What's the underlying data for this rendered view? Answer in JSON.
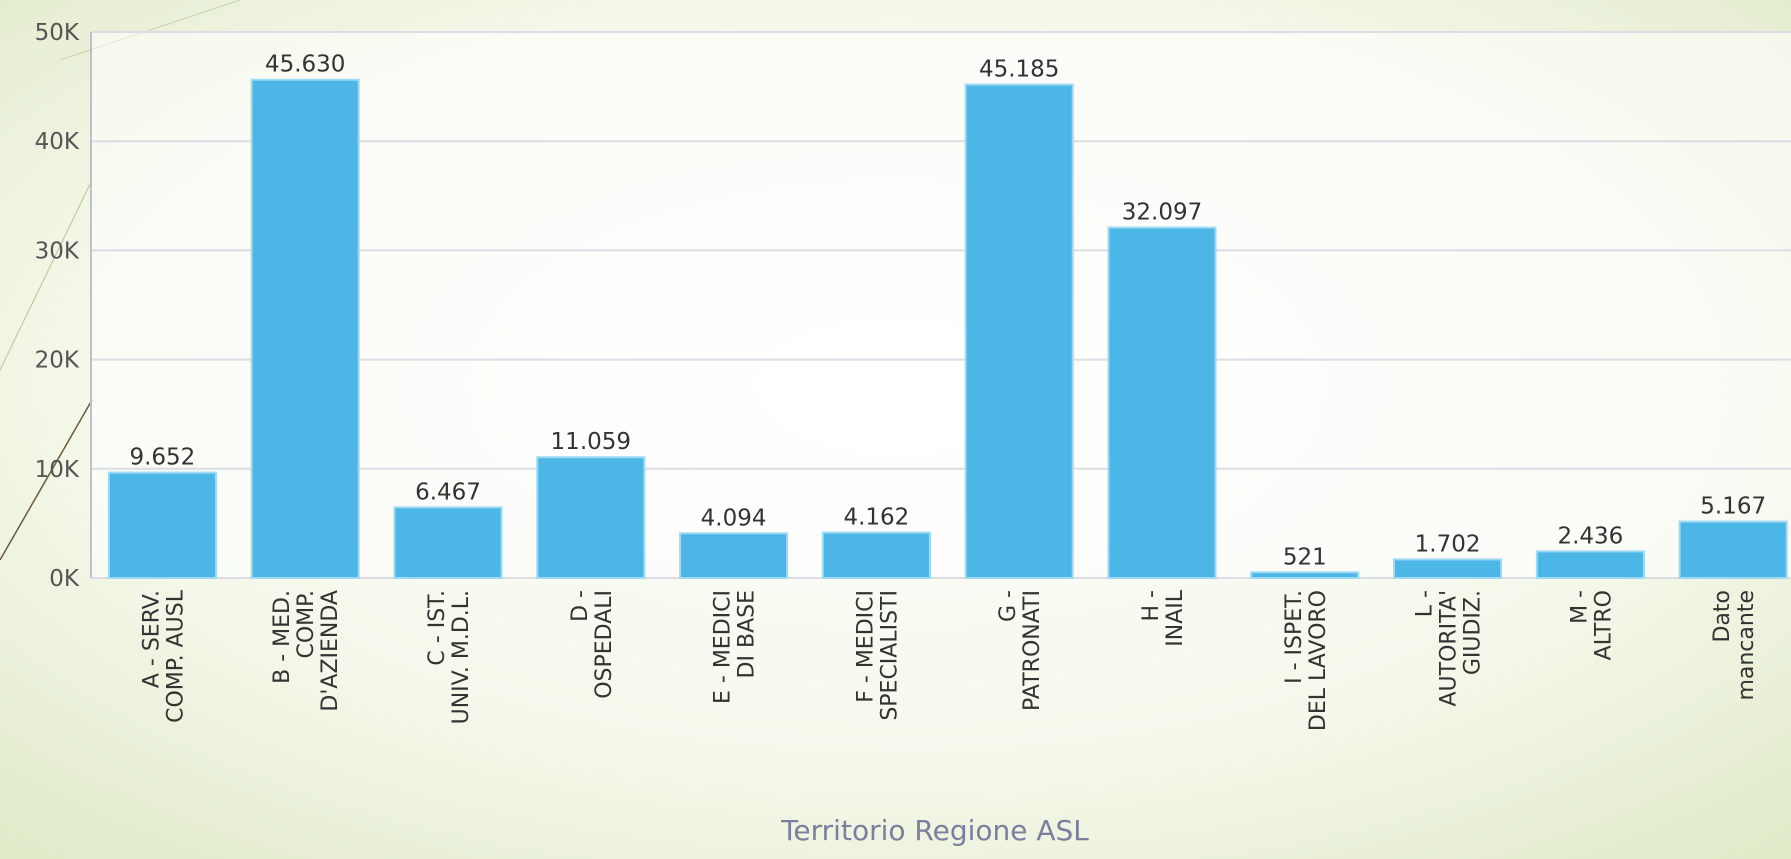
{
  "chart_data": {
    "type": "bar",
    "x_label": "Territorio Regione ASL",
    "categories": [
      [
        "A - SERV.",
        "COMP. AUSL"
      ],
      [
        "B - MED.",
        "COMP.",
        "D'AZIENDA"
      ],
      [
        "C - IST.",
        "UNIV. M.D.L."
      ],
      [
        "D -",
        "OSPEDALI"
      ],
      [
        "E - MEDICI",
        "DI BASE"
      ],
      [
        "F - MEDICI",
        "SPECIALISTI"
      ],
      [
        "G -",
        "PATRONATI"
      ],
      [
        "H -",
        "INAIL"
      ],
      [
        "I - ISPET.",
        "DEL LAVORO"
      ],
      [
        "L -",
        "AUTORITA'",
        "GIUDIZ."
      ],
      [
        "M -",
        "ALTRO"
      ],
      [
        "Dato",
        "mancante"
      ]
    ],
    "values": [
      9652,
      45630,
      6467,
      11059,
      4094,
      4162,
      45185,
      32097,
      521,
      1702,
      2436,
      5167
    ],
    "value_labels": [
      "9.652",
      "45.630",
      "6.467",
      "11.059",
      "4.094",
      "4.162",
      "45.185",
      "32.097",
      "521",
      "1.702",
      "2.436",
      "5.167"
    ],
    "color": "#4cb6e6",
    "ylim": [
      0,
      50000
    ],
    "yticks": [
      {
        "value": 0,
        "label": "0K"
      },
      {
        "value": 10000,
        "label": "10K"
      },
      {
        "value": 20000,
        "label": "20K"
      },
      {
        "value": 30000,
        "label": "30K"
      },
      {
        "value": 40000,
        "label": "40K"
      },
      {
        "value": 50000,
        "label": "50K"
      }
    ],
    "grid": true
  }
}
